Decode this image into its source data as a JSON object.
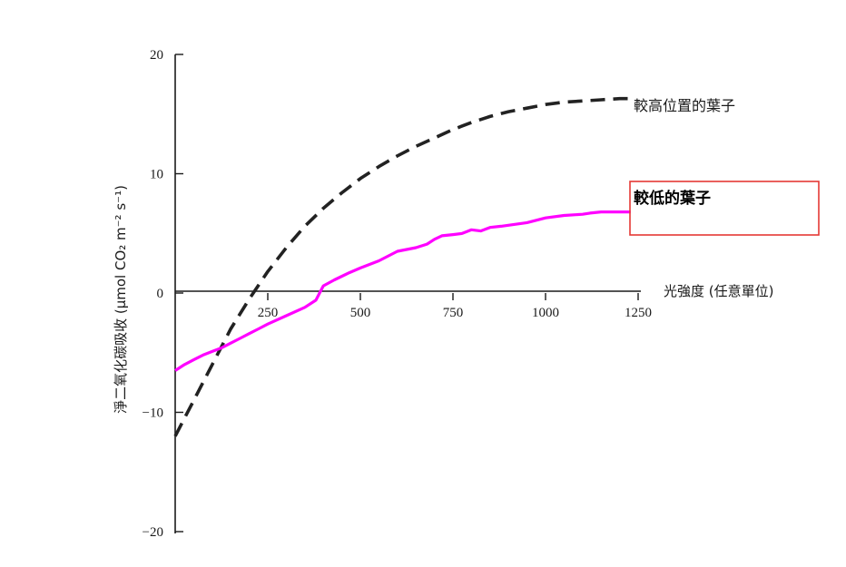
{
  "chart_data": {
    "type": "line",
    "xlabel": "光強度 (任意單位)",
    "ylabel": "淨二氧化碳吸收 (μmol CO₂ m⁻² s⁻¹)",
    "xlim": [
      0,
      1250
    ],
    "ylim": [
      -20,
      20
    ],
    "x_ticks": [
      "250",
      "500",
      "750",
      "1000",
      "1250"
    ],
    "y_ticks": [
      "20",
      "10",
      "0",
      "−10",
      "−20"
    ],
    "series": [
      {
        "name": "較高位置的葉子",
        "style": "dashed",
        "color": "#222222",
        "x": [
          0,
          50,
          100,
          150,
          200,
          250,
          300,
          350,
          400,
          450,
          500,
          550,
          600,
          650,
          700,
          750,
          800,
          850,
          900,
          950,
          1000,
          1050,
          1100,
          1150,
          1200,
          1230
        ],
        "y": [
          -12,
          -9,
          -6,
          -3,
          -0.5,
          1.8,
          3.8,
          5.6,
          7.1,
          8.4,
          9.6,
          10.6,
          11.5,
          12.3,
          13,
          13.7,
          14.3,
          14.8,
          15.2,
          15.5,
          15.8,
          16,
          16.1,
          16.2,
          16.3,
          16.3
        ]
      },
      {
        "name": "較低的葉子",
        "style": "solid",
        "color": "#ff00ff",
        "x": [
          0,
          25,
          50,
          75,
          100,
          125,
          150,
          175,
          200,
          225,
          250,
          300,
          350,
          380,
          400,
          430,
          470,
          500,
          550,
          600,
          650,
          680,
          700,
          720,
          750,
          775,
          800,
          825,
          850,
          880,
          950,
          1000,
          1050,
          1100,
          1120,
          1150,
          1200,
          1230
        ],
        "y": [
          -6.5,
          -6,
          -5.6,
          -5.2,
          -4.9,
          -4.6,
          -4.2,
          -3.8,
          -3.4,
          -3,
          -2.6,
          -1.9,
          -1.2,
          -0.6,
          0.6,
          1.1,
          1.7,
          2.1,
          2.7,
          3.5,
          3.8,
          4.1,
          4.5,
          4.8,
          4.9,
          5,
          5.3,
          5.2,
          5.5,
          5.6,
          5.9,
          6.3,
          6.5,
          6.6,
          6.7,
          6.8,
          6.8,
          6.8
        ]
      }
    ],
    "annotations": [
      {
        "text": "較低的葉子",
        "box_color": "#e53935",
        "emphasis": "boxed"
      }
    ]
  }
}
